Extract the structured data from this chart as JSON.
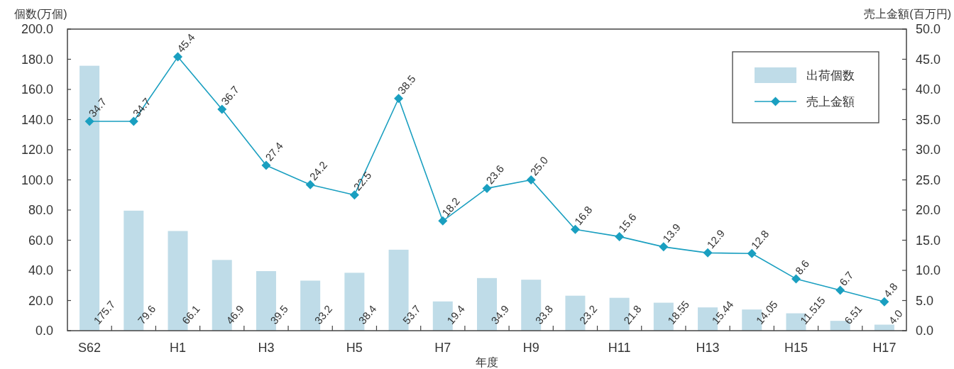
{
  "chart_data": {
    "type": "bar",
    "categories": [
      "S62",
      null,
      "H1",
      null,
      "H3",
      null,
      "H5",
      null,
      "H7",
      null,
      "H9",
      null,
      "H11",
      null,
      "H13",
      null,
      "H15",
      null,
      "H17"
    ],
    "series": [
      {
        "name": "出荷個数",
        "color": "#bfdce8",
        "values": [
          175.7,
          79.6,
          66.1,
          46.9,
          39.5,
          33.2,
          38.4,
          53.7,
          19.4,
          34.9,
          33.8,
          23.2,
          21.8,
          18.55,
          15.44,
          14.05,
          11.515,
          6.51,
          4.0
        ],
        "value_labels": [
          "175.7",
          "79.6",
          "66.1",
          "46.9",
          "39.5",
          "33.2",
          "38.4",
          "53.7",
          "19.4",
          "34.9",
          "33.8",
          "23.2",
          "21.8",
          "18.55",
          "15.44",
          "14.05",
          "11.515",
          "6.51",
          "4.0"
        ]
      },
      {
        "name": "売上金額",
        "type": "line",
        "axis": "y2",
        "color": "#1a9fc0",
        "values": [
          34.7,
          34.7,
          45.4,
          36.7,
          27.4,
          24.2,
          22.5,
          38.5,
          18.2,
          23.6,
          25.0,
          16.8,
          15.6,
          13.9,
          12.9,
          12.8,
          8.6,
          6.7,
          4.8
        ],
        "value_labels": [
          "34.7",
          "34.7",
          "45.4",
          "36.7",
          "27.4",
          "24.2",
          "22.5",
          "38.5",
          "18.2",
          "23.6",
          "25.0",
          "16.8",
          "15.6",
          "13.9",
          "12.9",
          "12.8",
          "8.6",
          "6.7",
          "4.8"
        ]
      }
    ],
    "xlabel": "年度",
    "ylabel": "個数(万個)",
    "y2label": "売上金額(百万円)",
    "ylim": [
      0,
      200
    ],
    "yticks": [
      {
        "value": 0,
        "label": "0.0"
      },
      {
        "value": 20,
        "label": "20.0"
      },
      {
        "value": 40,
        "label": "40.0"
      },
      {
        "value": 60,
        "label": "60.0"
      },
      {
        "value": 80,
        "label": "80.0"
      },
      {
        "value": 100,
        "label": "100.0"
      },
      {
        "value": 120,
        "label": "120.0"
      },
      {
        "value": 140,
        "label": "140.0"
      },
      {
        "value": 160,
        "label": "160.0"
      },
      {
        "value": 180,
        "label": "180.0"
      },
      {
        "value": 200,
        "label": "200.0"
      }
    ],
    "y2lim": [
      0,
      50
    ],
    "y2ticks": [
      {
        "value": 0,
        "label": "0.0"
      },
      {
        "value": 5,
        "label": "5.0"
      },
      {
        "value": 10,
        "label": "10.0"
      },
      {
        "value": 15,
        "label": "15.0"
      },
      {
        "value": 20,
        "label": "20.0"
      },
      {
        "value": 25,
        "label": "25.0"
      },
      {
        "value": 30,
        "label": "30.0"
      },
      {
        "value": 35,
        "label": "35.0"
      },
      {
        "value": 40,
        "label": "40.0"
      },
      {
        "value": 45,
        "label": "45.0"
      },
      {
        "value": 50,
        "label": "50.0"
      }
    ],
    "legend": "top right",
    "marker": "diamond",
    "line_style": "solid"
  }
}
